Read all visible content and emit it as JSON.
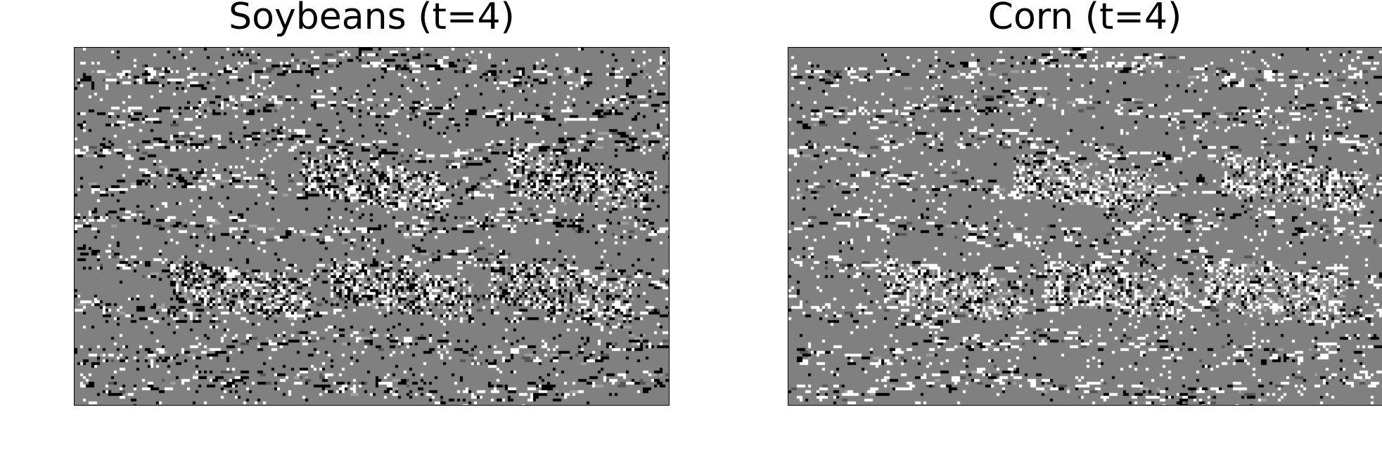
{
  "panels": [
    {
      "title": "Soybeans (t=4)"
    },
    {
      "title": "Corn (t=4)"
    }
  ],
  "colors": {
    "background": "#808080",
    "dark_gray": "#555555",
    "light_gray": "#a0a0a0",
    "white": "#ffffff",
    "black": "#000000"
  }
}
